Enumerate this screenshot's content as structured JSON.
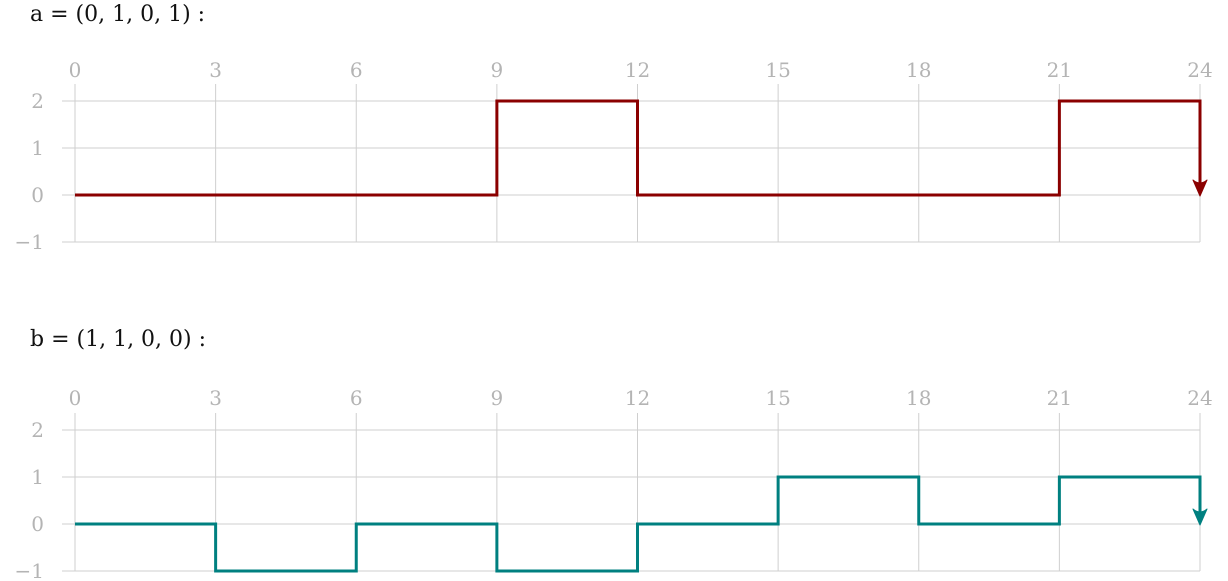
{
  "chart_data": [
    {
      "type": "line",
      "step": "post",
      "title": "a = (0, 1, 0, 1) :",
      "x_ticks": [
        "0",
        "3",
        "6",
        "9",
        "12",
        "15",
        "18",
        "21",
        "24"
      ],
      "y_ticks": [
        "2",
        "1",
        "0",
        "−1"
      ],
      "xlim": [
        0,
        24
      ],
      "ylim": [
        -1,
        2
      ],
      "grid": true,
      "end_arrow": true,
      "color": "#8b0000",
      "x": [
        0,
        9,
        12,
        21,
        24
      ],
      "y": [
        0,
        2,
        0,
        2,
        0
      ]
    },
    {
      "type": "line",
      "step": "post",
      "title": "b = (1, 1, 0, 0) :",
      "x_ticks": [
        "0",
        "3",
        "6",
        "9",
        "12",
        "15",
        "18",
        "21",
        "24"
      ],
      "y_ticks": [
        "2",
        "1",
        "0",
        "−1"
      ],
      "xlim": [
        0,
        24
      ],
      "ylim": [
        -1,
        2
      ],
      "grid": true,
      "end_arrow": true,
      "color": "#008080",
      "x": [
        0,
        3,
        6,
        9,
        12,
        15,
        18,
        21,
        24
      ],
      "y": [
        0,
        -1,
        0,
        -1,
        0,
        1,
        0,
        1,
        0
      ]
    }
  ]
}
